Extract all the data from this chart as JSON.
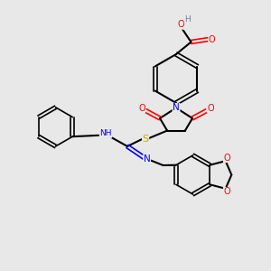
{
  "background_color": "#e8e8e8",
  "atom_colors": {
    "C": "#000000",
    "N": "#0000ff",
    "O": "#ff0000",
    "S": "#ccaa00",
    "H": "#708090"
  },
  "bond_color": "#000000",
  "figsize": [
    3.0,
    3.0
  ],
  "dpi": 100,
  "xlim": [
    0,
    10
  ],
  "ylim": [
    0,
    10
  ]
}
